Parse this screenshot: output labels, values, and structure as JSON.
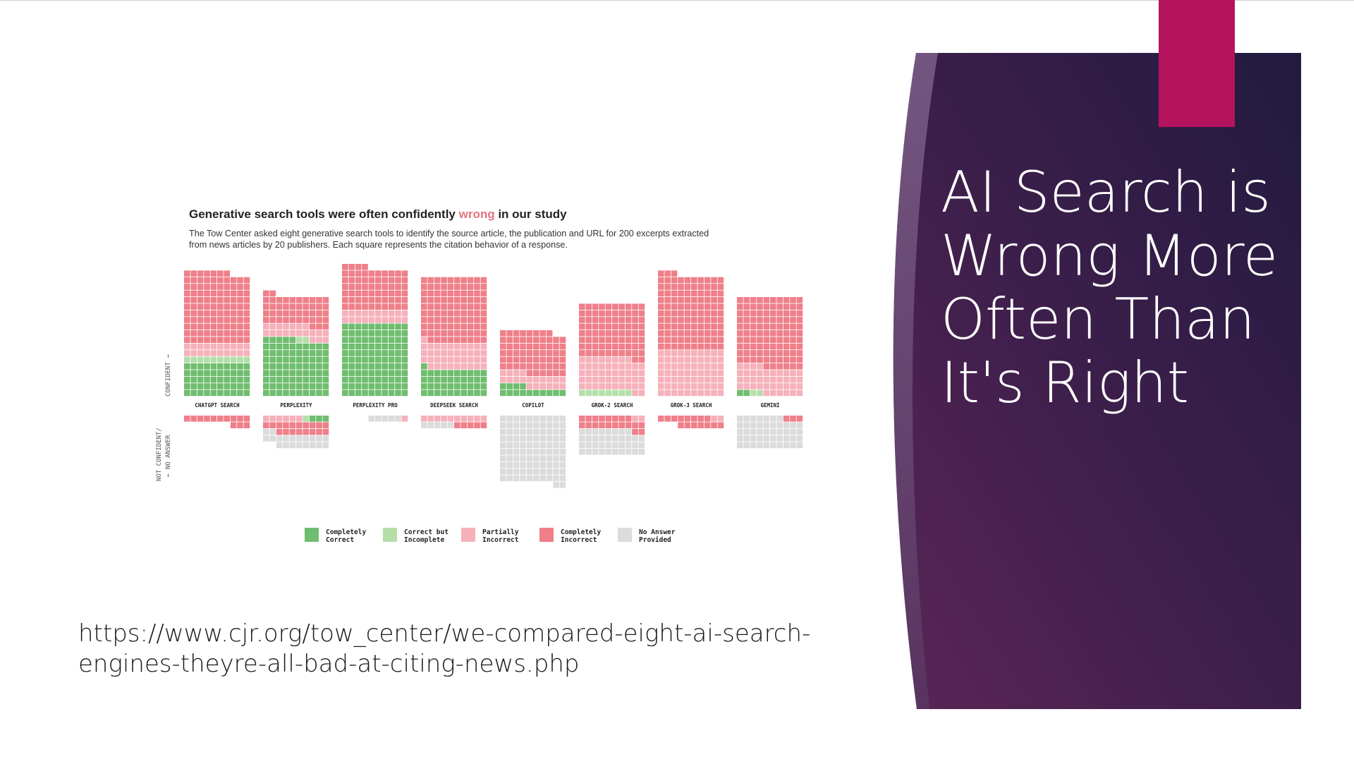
{
  "slide": {
    "title": "AI Search is Wrong More Often Than It's Right",
    "source_url": "https://www.cjr.org/tow_center/we-compared-eight-ai-search-engines-theyre-all-bad-at-citing-news.php",
    "colors": {
      "panel_dark": "#231a40",
      "panel_mid": "#4d2452",
      "accent": "#b5135d"
    }
  },
  "chart_data": {
    "type": "waffle",
    "title_before": "Generative search tools were often confidently ",
    "title_highlight": "wrong",
    "title_after": " in our study",
    "subtitle": "The Tow Center asked eight generative search tools to identify the source article, the publication and URL for 200 excerpts extracted from news articles by 20 publishers. Each square represents the citation behavior of a response.",
    "upper_axis_label": "CONFIDENT →",
    "lower_axis_label_1": "NOT CONFIDENT/",
    "lower_axis_label_2": "← NO ANSWER",
    "categories": [
      "CHATGPT SEARCH",
      "PERPLEXITY",
      "PERPLEXITY PRO",
      "DEEPSEEK SEARCH",
      "COPILOT",
      "GROK-2 SEARCH",
      "GROK-3 SEARCH",
      "GEMINI"
    ],
    "legend": [
      {
        "key": "completely_correct",
        "line1": "Completely",
        "line2": "Correct",
        "color": "#6fbd6e"
      },
      {
        "key": "correct_incomplete",
        "line1": "Correct but",
        "line2": "Incomplete",
        "color": "#b4dfa9"
      },
      {
        "key": "partially_incorrect",
        "line1": "Partially",
        "line2": "Incorrect",
        "color": "#f6b1bb"
      },
      {
        "key": "completely_incorrect",
        "line1": "Completely",
        "line2": "Incorrect",
        "color": "#ef7f89"
      },
      {
        "key": "no_answer",
        "line1": "No Answer",
        "line2": "Provided",
        "color": "#dcdcdc"
      }
    ],
    "confident": [
      {
        "completely_correct": 50,
        "correct_incomplete": 10,
        "partially_incorrect": 20,
        "completely_incorrect": 107
      },
      {
        "completely_correct": 85,
        "correct_incomplete": 2,
        "partially_incorrect": 20,
        "completely_incorrect": 45
      },
      {
        "completely_correct": 110,
        "correct_incomplete": 0,
        "partially_incorrect": 20,
        "completely_incorrect": 64
      },
      {
        "completely_correct": 41,
        "correct_incomplete": 0,
        "partially_incorrect": 40,
        "completely_incorrect": 99
      },
      {
        "completely_correct": 14,
        "correct_incomplete": 0,
        "partially_incorrect": 20,
        "completely_incorrect": 64
      },
      {
        "completely_correct": 0,
        "correct_incomplete": 8,
        "partially_incorrect": 50,
        "completely_incorrect": 82
      },
      {
        "completely_correct": 0,
        "correct_incomplete": 0,
        "partially_incorrect": 70,
        "completely_incorrect": 113
      },
      {
        "completely_correct": 2,
        "correct_incomplete": 2,
        "partially_incorrect": 40,
        "completely_incorrect": 106
      }
    ],
    "not_confident": [
      {
        "completely_correct": 0,
        "correct_incomplete": 0,
        "partially_incorrect": 0,
        "completely_incorrect": 13,
        "no_answer": 0
      },
      {
        "completely_correct": 3,
        "correct_incomplete": 1,
        "partially_incorrect": 6,
        "completely_incorrect": 18,
        "no_answer": 20
      },
      {
        "completely_correct": 0,
        "correct_incomplete": 0,
        "partially_incorrect": 1,
        "completely_incorrect": 0,
        "no_answer": 5
      },
      {
        "completely_correct": 0,
        "correct_incomplete": 0,
        "partially_incorrect": 10,
        "completely_incorrect": 5,
        "no_answer": 5
      },
      {
        "completely_correct": 0,
        "correct_incomplete": 0,
        "partially_incorrect": 0,
        "completely_incorrect": 0,
        "no_answer": 102
      },
      {
        "completely_correct": 0,
        "correct_incomplete": 0,
        "partially_incorrect": 2,
        "completely_incorrect": 20,
        "no_answer": 38
      },
      {
        "completely_correct": 0,
        "correct_incomplete": 0,
        "partially_incorrect": 2,
        "completely_incorrect": 15,
        "no_answer": 0
      },
      {
        "completely_correct": 0,
        "correct_incomplete": 0,
        "partially_incorrect": 0,
        "completely_incorrect": 3,
        "no_answer": 47
      }
    ]
  }
}
